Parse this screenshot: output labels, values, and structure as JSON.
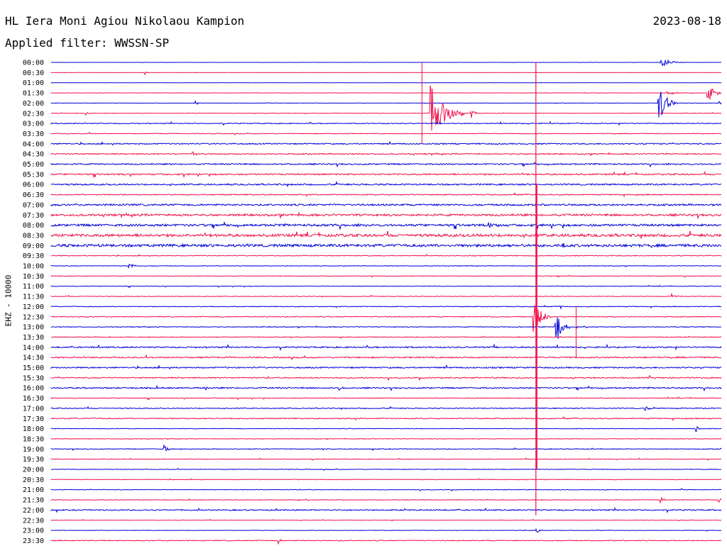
{
  "header": {
    "station": "HL Iera Moni Agiou Nikolaou Kampion",
    "filter": "Applied filter: WWSSN-SP",
    "date": "2023-08-18",
    "channel_label": "EHZ - 10000"
  },
  "colors": {
    "even_rows": "#0000d8",
    "odd_rows": "#f0104a",
    "background": "#ffffff"
  },
  "chart_data": {
    "type": "line",
    "title": "HL Iera Moni Agiou Nikolaou Kampion",
    "subtitle": "Applied filter: WWSSN-SP",
    "ylabel": "EHZ - 10000",
    "minutes_per_line": 30,
    "row_labels": [
      "00:00",
      "00:30",
      "01:00",
      "01:30",
      "02:00",
      "02:30",
      "03:00",
      "03:30",
      "04:00",
      "04:30",
      "05:00",
      "05:30",
      "06:00",
      "06:30",
      "07:00",
      "07:30",
      "08:00",
      "08:30",
      "09:00",
      "09:30",
      "10:00",
      "10:30",
      "11:00",
      "11:30",
      "12:00",
      "12:30",
      "13:00",
      "13:30",
      "14:00",
      "14:30",
      "15:00",
      "15:30",
      "16:00",
      "16:30",
      "17:00",
      "17:30",
      "18:00",
      "18:30",
      "19:00",
      "19:30",
      "20:00",
      "20:30",
      "21:00",
      "21:30",
      "22:00",
      "22:30",
      "23:00",
      "23:30"
    ],
    "row_noise": [
      0.1,
      0.1,
      0.1,
      0.2,
      0.2,
      0.3,
      0.6,
      0.5,
      0.8,
      0.8,
      0.9,
      1.0,
      1.0,
      0.7,
      1.2,
      1.4,
      1.5,
      1.8,
      1.8,
      0.5,
      0.4,
      0.4,
      0.4,
      0.4,
      0.5,
      0.6,
      0.5,
      0.5,
      0.9,
      0.9,
      0.9,
      0.8,
      0.9,
      0.5,
      0.6,
      0.7,
      0.4,
      0.4,
      0.5,
      0.4,
      0.4,
      0.4,
      0.4,
      0.4,
      0.8,
      0.3,
      0.3,
      0.6
    ],
    "events": [
      {
        "row": 0,
        "minute": 27.3,
        "amp": 7,
        "dur": 1.0
      },
      {
        "row": 1,
        "minute": 4.2,
        "amp": 3,
        "dur": 0.2
      },
      {
        "row": 3,
        "minute": 29.4,
        "amp": 12,
        "dur": 0.8
      },
      {
        "row": 3,
        "minute": 27.6,
        "amp": 2,
        "dur": 1.5
      },
      {
        "row": 4,
        "minute": 6.5,
        "amp": 3,
        "dur": 0.2
      },
      {
        "row": 4,
        "minute": 27.2,
        "amp": 28,
        "dur": 0.8
      },
      {
        "row": 4,
        "minute": 29.9,
        "amp": 3,
        "dur": 0.3
      },
      {
        "row": 5,
        "minute": 1.6,
        "amp": 4,
        "dur": 0.2
      },
      {
        "row": 5,
        "minute": 17.0,
        "amp": 40,
        "dur": 1.5
      },
      {
        "row": 5,
        "minute": 18.8,
        "amp": 8,
        "dur": 0.3
      },
      {
        "row": 9,
        "minute": 6.3,
        "amp": 6,
        "dur": 0.3
      },
      {
        "row": 16,
        "minute": 19.6,
        "amp": 3,
        "dur": 0.6
      },
      {
        "row": 18,
        "minute": 22.9,
        "amp": 8,
        "dur": 0.2
      },
      {
        "row": 20,
        "minute": 3.5,
        "amp": 5,
        "dur": 0.5
      },
      {
        "row": 23,
        "minute": 27.8,
        "amp": 4,
        "dur": 0.4
      },
      {
        "row": 24,
        "minute": 22.8,
        "amp": 3,
        "dur": 0.2
      },
      {
        "row": 25,
        "minute": 21.6,
        "amp": 26,
        "dur": 0.8
      },
      {
        "row": 26,
        "minute": 22.6,
        "amp": 30,
        "dur": 0.6
      },
      {
        "row": 32,
        "minute": 6.9,
        "amp": 3,
        "dur": 0.3
      },
      {
        "row": 32,
        "minute": 12.9,
        "amp": 4,
        "dur": 0.2
      },
      {
        "row": 34,
        "minute": 26.6,
        "amp": 3,
        "dur": 0.4
      },
      {
        "row": 36,
        "minute": 28.9,
        "amp": 4,
        "dur": 0.2
      },
      {
        "row": 38,
        "minute": 5.1,
        "amp": 6,
        "dur": 0.3
      },
      {
        "row": 43,
        "minute": 27.3,
        "amp": 6,
        "dur": 0.3
      },
      {
        "row": 43,
        "minute": 29.9,
        "amp": 4,
        "dur": 0.2
      },
      {
        "row": 46,
        "minute": 21.7,
        "amp": 5,
        "dur": 0.3
      },
      {
        "row": 47,
        "minute": 10.2,
        "amp": 5,
        "dur": 0.2
      }
    ],
    "vertical_marks": [
      {
        "minute": 16.6,
        "from_row": 0,
        "to_row": 8
      },
      {
        "minute": 21.7,
        "from_row": 0,
        "to_row": 44.5
      },
      {
        "minute": 23.5,
        "from_row": 24,
        "to_row": 29
      }
    ],
    "grid": false
  }
}
